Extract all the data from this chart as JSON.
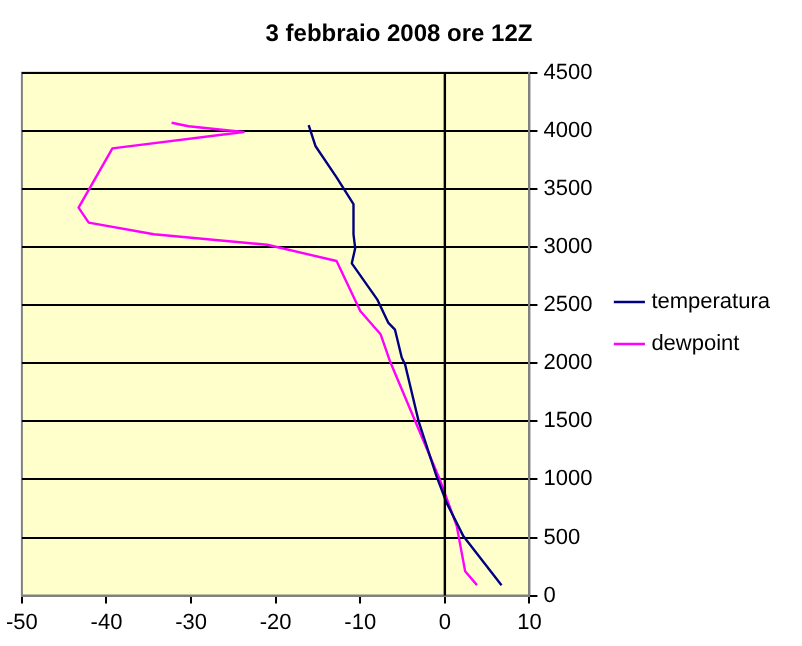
{
  "chart_data": {
    "type": "line",
    "title": "3 febbraio 2008 ore 12Z",
    "series": [
      {
        "name": "temperatura",
        "color": "#000080",
        "x": [
          6.7,
          2.2,
          0.2,
          -1.0,
          -3.1,
          -4.7,
          -5.1,
          -5.9,
          -6.7,
          -8.0,
          -11.0,
          -10.6,
          -10.8,
          -10.8,
          -12.8,
          -15.3,
          -16.1
        ],
        "values": [
          90,
          510,
          800,
          1030,
          1500,
          1990,
          2050,
          2290,
          2350,
          2550,
          2860,
          2990,
          3110,
          3370,
          3600,
          3870,
          4050
        ]
      },
      {
        "name": "dewpoint",
        "color": "#ff00ff",
        "x": [
          3.8,
          2.4,
          1.4,
          -0.6,
          -3.5,
          -6.5,
          -7.6,
          -10.0,
          -12.8,
          -21.0,
          -34.4,
          -42.1,
          -43.3,
          -39.3,
          -23.8,
          -30.3,
          -32.3
        ],
        "values": [
          90,
          210,
          600,
          1000,
          1500,
          2020,
          2250,
          2450,
          2880,
          3020,
          3110,
          3210,
          3340,
          3850,
          3990,
          4040,
          4070
        ]
      }
    ],
    "xlim": [
      -50,
      10
    ],
    "xticks": [
      -50,
      -40,
      -30,
      -20,
      -10,
      0,
      10
    ],
    "ylim": [
      0,
      4500
    ],
    "yticks": [
      0,
      500,
      1000,
      1500,
      2000,
      2500,
      3000,
      3500,
      4000,
      4500
    ],
    "ref_lines": [
      {
        "axis": "x",
        "value": 0,
        "color": "#000000"
      }
    ],
    "grid": "y",
    "legend": "right",
    "marker": "none",
    "line_style": "solid"
  }
}
